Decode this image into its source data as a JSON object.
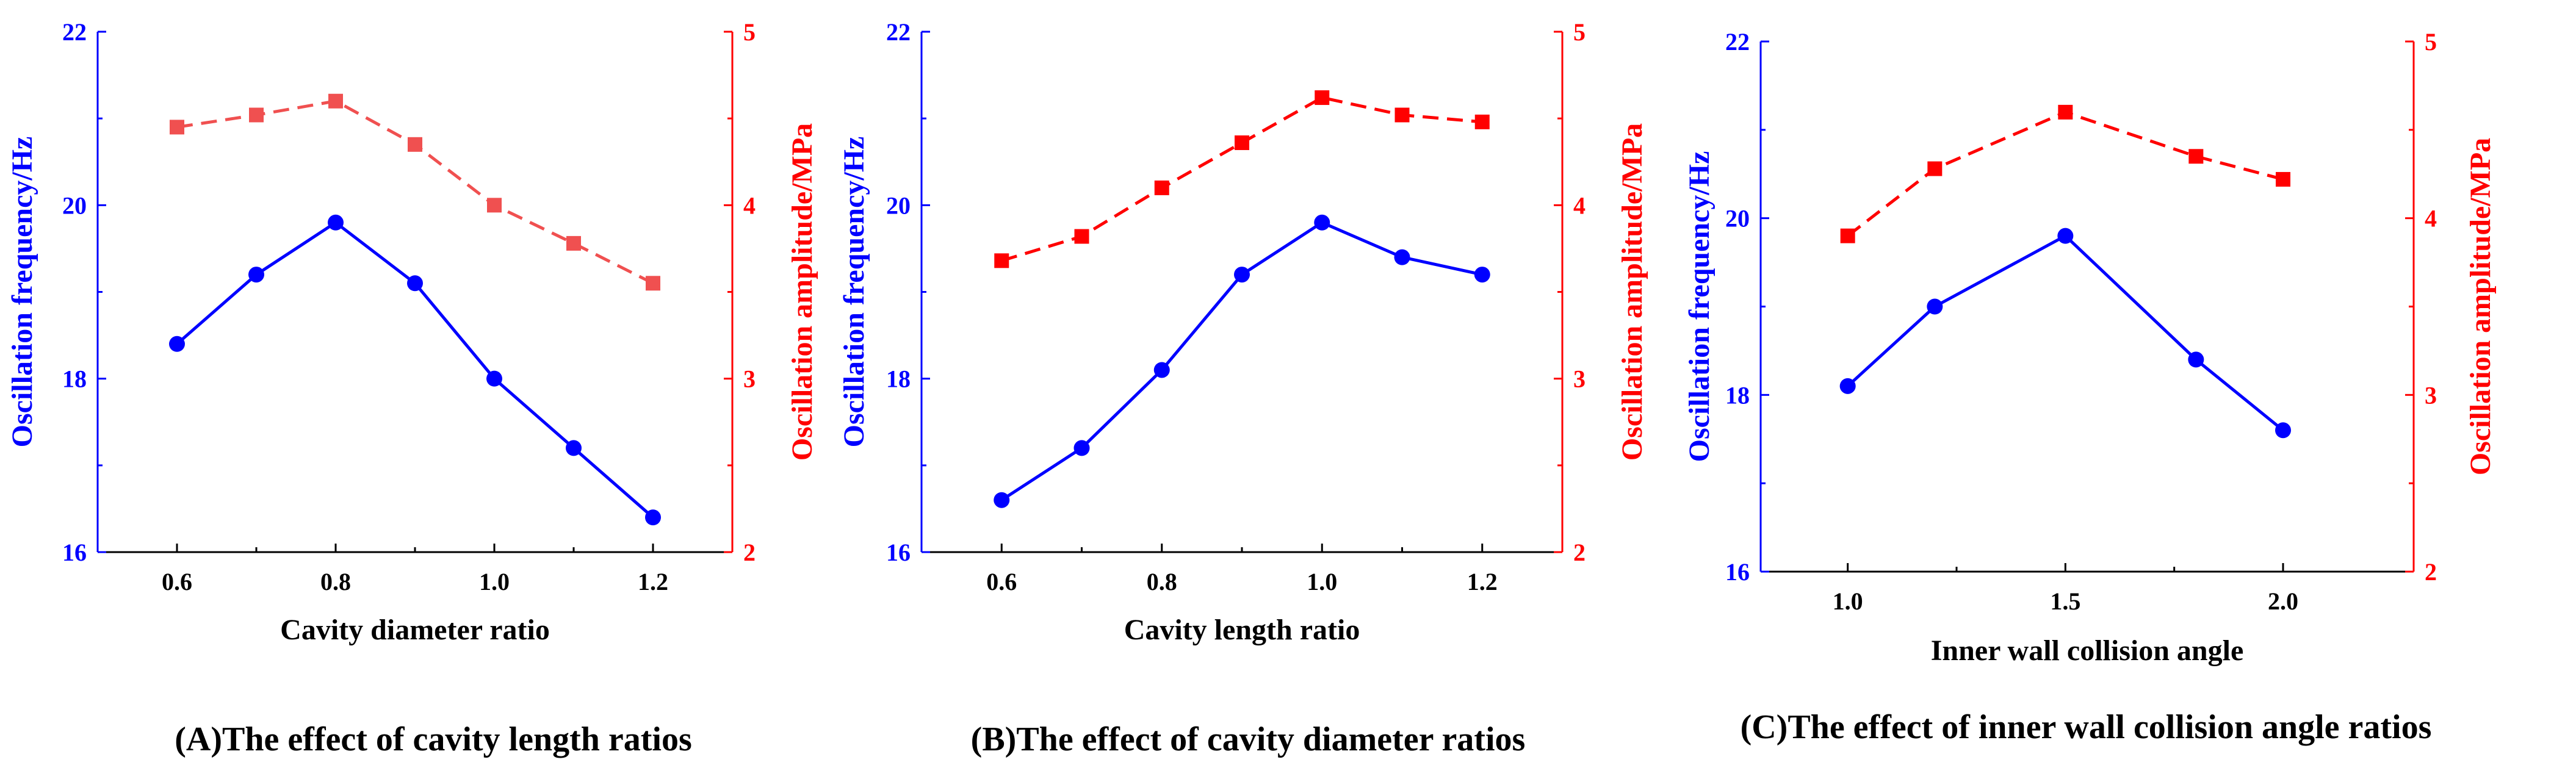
{
  "chart_data": [
    {
      "type": "line",
      "caption": "(A)The effect of cavity length ratios",
      "xlabel": "Cavity diameter ratio",
      "ylabel_left": "Oscillation frequency/Hz",
      "ylabel_right": "Oscillation amplitude/MPa",
      "xlim": [
        0.5,
        1.3
      ],
      "xticks": [
        0.6,
        0.8,
        1.0,
        1.2
      ],
      "xtick_labels": [
        "0.6",
        "0.8",
        "1.0",
        "1.2"
      ],
      "xminor": [
        0.7,
        0.9,
        1.1
      ],
      "ylim_left": [
        16,
        22
      ],
      "yticks_left": [
        16,
        18,
        20,
        22
      ],
      "ytick_labels_left": [
        "16",
        "18",
        "20",
        "22"
      ],
      "ylim_right": [
        2,
        5
      ],
      "yticks_right": [
        2,
        3,
        4,
        5
      ],
      "ytick_labels_right": [
        "2",
        "3",
        "4",
        "5"
      ],
      "series": [
        {
          "name": "Oscillation frequency",
          "axis": "left",
          "color": "#0000ff",
          "marker": "circle",
          "dash": "solid",
          "x": [
            0.6,
            0.7,
            0.8,
            0.9,
            1.0,
            1.1,
            1.2
          ],
          "values": [
            18.4,
            19.2,
            19.8,
            19.1,
            18.0,
            17.2,
            16.4
          ]
        },
        {
          "name": "Oscillation amplitude",
          "axis": "right",
          "color": "#f05050",
          "marker": "square",
          "dash": "dashed",
          "x": [
            0.6,
            0.7,
            0.8,
            0.9,
            1.0,
            1.1,
            1.2
          ],
          "values": [
            4.45,
            4.52,
            4.6,
            4.35,
            4.0,
            3.78,
            3.55
          ]
        }
      ]
    },
    {
      "type": "line",
      "caption": "(B)The effect of cavity diameter ratios",
      "xlabel": "Cavity length ratio",
      "ylabel_left": "Oscillation frequency/Hz",
      "ylabel_right": "Oscillation amplitude/MPa",
      "xlim": [
        0.5,
        1.3
      ],
      "xticks": [
        0.6,
        0.8,
        1.0,
        1.2
      ],
      "xtick_labels": [
        "0.6",
        "0.8",
        "1.0",
        "1.2"
      ],
      "xminor": [
        0.7,
        0.9,
        1.1
      ],
      "ylim_left": [
        16,
        22
      ],
      "yticks_left": [
        16,
        18,
        20,
        22
      ],
      "ytick_labels_left": [
        "16",
        "18",
        "20",
        "22"
      ],
      "ylim_right": [
        2,
        5
      ],
      "yticks_right": [
        2,
        3,
        4,
        5
      ],
      "ytick_labels_right": [
        "2",
        "3",
        "4",
        "5"
      ],
      "series": [
        {
          "name": "Oscillation frequency",
          "axis": "left",
          "color": "#0000ff",
          "marker": "circle",
          "dash": "solid",
          "x": [
            0.6,
            0.7,
            0.8,
            0.9,
            1.0,
            1.1,
            1.2
          ],
          "values": [
            16.6,
            17.2,
            18.1,
            19.2,
            19.8,
            19.4,
            19.2
          ]
        },
        {
          "name": "Oscillation amplitude",
          "axis": "right",
          "color": "#ff0000",
          "marker": "square",
          "dash": "dashed",
          "x": [
            0.6,
            0.7,
            0.8,
            0.9,
            1.0,
            1.1,
            1.2
          ],
          "values": [
            3.68,
            3.82,
            4.1,
            4.36,
            4.62,
            4.52,
            4.48
          ]
        }
      ]
    },
    {
      "type": "line",
      "caption": "(C)The effect of inner wall collision angle ratios",
      "xlabel": "Inner wall collision angle",
      "ylabel_left": "Oscillation frequency/Hz",
      "ylabel_right": "Oscillation amplitude/MPa",
      "xlim": [
        0.8,
        2.3
      ],
      "xticks": [
        1.0,
        1.5,
        2.0
      ],
      "xtick_labels": [
        "1.0",
        "1.5",
        "2.0"
      ],
      "xminor": [
        1.25,
        1.75
      ],
      "ylim_left": [
        16,
        22
      ],
      "yticks_left": [
        16,
        18,
        20,
        22
      ],
      "ytick_labels_left": [
        "16",
        "18",
        "20",
        "22"
      ],
      "ylim_right": [
        2,
        5
      ],
      "yticks_right": [
        2,
        3,
        4,
        5
      ],
      "ytick_labels_right": [
        "2",
        "3",
        "4",
        "5"
      ],
      "series": [
        {
          "name": "Oscillation frequency",
          "axis": "left",
          "color": "#0000ff",
          "marker": "circle",
          "dash": "solid",
          "x": [
            1.0,
            1.2,
            1.5,
            1.8,
            2.0
          ],
          "values": [
            18.1,
            19.0,
            19.8,
            18.4,
            17.6
          ]
        },
        {
          "name": "Oscillation amplitude",
          "axis": "right",
          "color": "#ff0000",
          "marker": "square",
          "dash": "dashed",
          "x": [
            1.0,
            1.2,
            1.5,
            1.8,
            2.0
          ],
          "values": [
            3.9,
            4.28,
            4.6,
            4.35,
            4.22
          ]
        }
      ]
    }
  ]
}
